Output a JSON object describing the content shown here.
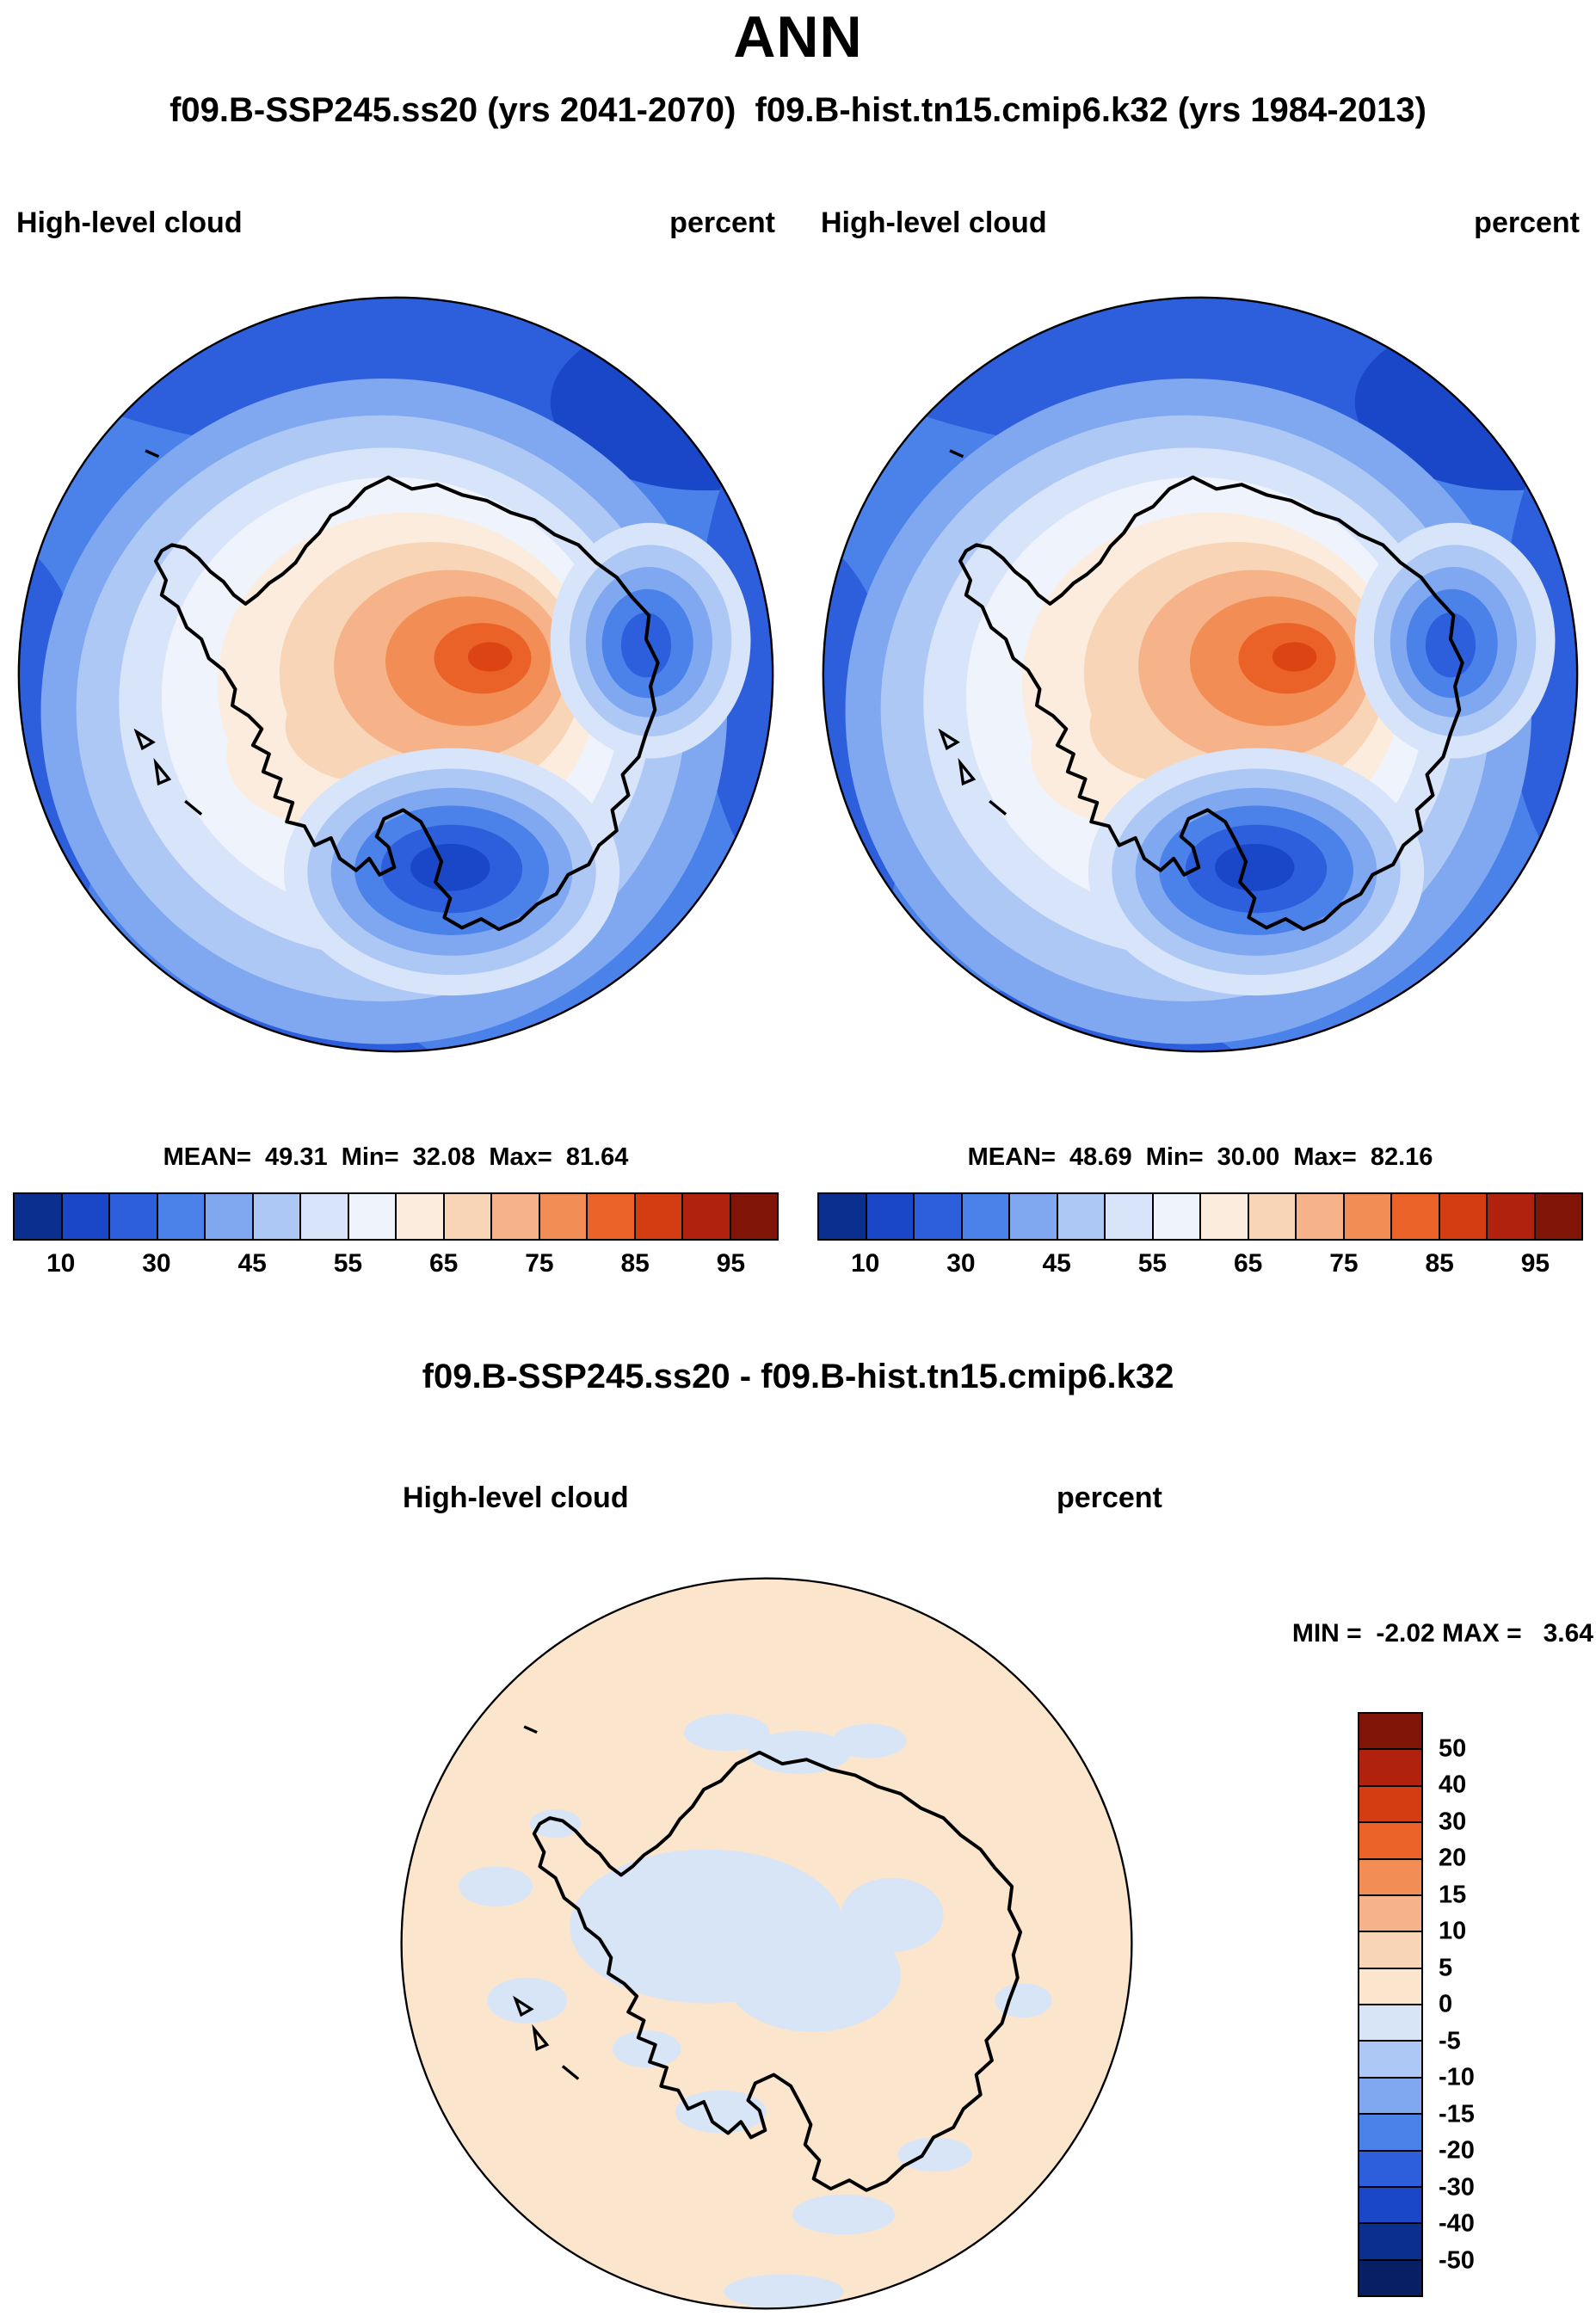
{
  "title": "ANN",
  "subtitle": "f09.B-SSP245.ss20 (yrs 2041-2070)  f09.B-hist.tn15.cmip6.k32 (yrs 1984-2013)",
  "panels": [
    {
      "field": "High-level cloud",
      "units": "percent",
      "stats": "MEAN=  49.31  Min=  32.08  Max=  81.64"
    },
    {
      "field": "High-level cloud",
      "units": "percent",
      "stats": "MEAN=  48.69  Min=  30.00  Max=  82.16"
    }
  ],
  "colorbar": {
    "colors": [
      "#0b2f8f",
      "#1a47c8",
      "#2d5fdd",
      "#4a82ea",
      "#7fa8f1",
      "#aec8f6",
      "#d8e4fa",
      "#eff3fb",
      "#fcecdd",
      "#f9d5b8",
      "#f6b288",
      "#f18d55",
      "#ea6227",
      "#d43d12",
      "#b0220d",
      "#7f1407"
    ],
    "ticks": [
      "10",
      "30",
      "45",
      "55",
      "65",
      "75",
      "85",
      "95"
    ]
  },
  "diff": {
    "title": "f09.B-SSP245.ss20 - f09.B-hist.tn15.cmip6.k32",
    "field": "High-level cloud",
    "units": "percent",
    "minmax": "MIN =  -2.02 MAX =   3.64",
    "colorbar": {
      "colors": [
        "#7f1407",
        "#b0220d",
        "#d43d12",
        "#ea6227",
        "#f18d55",
        "#f6b288",
        "#f9d5b8",
        "#fbe5cd",
        "#d7e5f6",
        "#aec8f6",
        "#7fa8f1",
        "#4a82ea",
        "#2d5fdd",
        "#1a47c8",
        "#0b2f8f",
        "#081f66"
      ],
      "ticks": [
        "50",
        "40",
        "30",
        "20",
        "15",
        "10",
        "5",
        "0",
        "-5",
        "-10",
        "-15",
        "-20",
        "-30",
        "-40",
        "-50"
      ]
    }
  },
  "chart_data": [
    {
      "type": "heatmap",
      "subtype": "polar_stereographic_contour_map",
      "title": "f09.B-SSP245.ss20 (yrs 2041-2070)",
      "variable": "High-level cloud",
      "units": "percent",
      "region": "Antarctica, Southern Hemisphere polar projection",
      "stats": {
        "mean": 49.31,
        "min": 32.08,
        "max": 81.64
      },
      "colorbar_ticks": [
        10,
        30,
        45,
        55,
        65,
        75,
        85,
        95
      ],
      "palette": "blue-white-red filled contours, 16 levels",
      "features": "Low values (30-45%) over Southern Ocean, local minimum over Ross Sea region, maximum (75-85%) over East Antarctic plateau"
    },
    {
      "type": "heatmap",
      "subtype": "polar_stereographic_contour_map",
      "title": "f09.B-hist.tn15.cmip6.k32 (yrs 1984-2013)",
      "variable": "High-level cloud",
      "units": "percent",
      "region": "Antarctica, Southern Hemisphere polar projection",
      "stats": {
        "mean": 48.69,
        "min": 30.0,
        "max": 82.16
      },
      "colorbar_ticks": [
        10,
        30,
        45,
        55,
        65,
        75,
        85,
        95
      ],
      "palette": "blue-white-red filled contours, 16 levels",
      "features": "Pattern nearly identical to first panel"
    },
    {
      "type": "heatmap",
      "subtype": "polar_stereographic_contour_map",
      "title": "f09.B-SSP245.ss20 - f09.B-hist.tn15.cmip6.k32 (difference)",
      "variable": "High-level cloud",
      "units": "percent",
      "region": "Antarctica, Southern Hemisphere polar projection",
      "stats": {
        "min": -2.02,
        "max": 3.64
      },
      "colorbar_ticks": [
        50,
        40,
        30,
        20,
        15,
        10,
        5,
        0,
        -5,
        -10,
        -15,
        -20,
        -30,
        -40,
        -50
      ],
      "palette": "red-white-blue filled contours, 16 levels",
      "features": "Differences mostly within 0 to +5 percent (pale peach); scattered -5 to 0 percent patches (pale blue) over the continent and nearby ocean"
    }
  ]
}
